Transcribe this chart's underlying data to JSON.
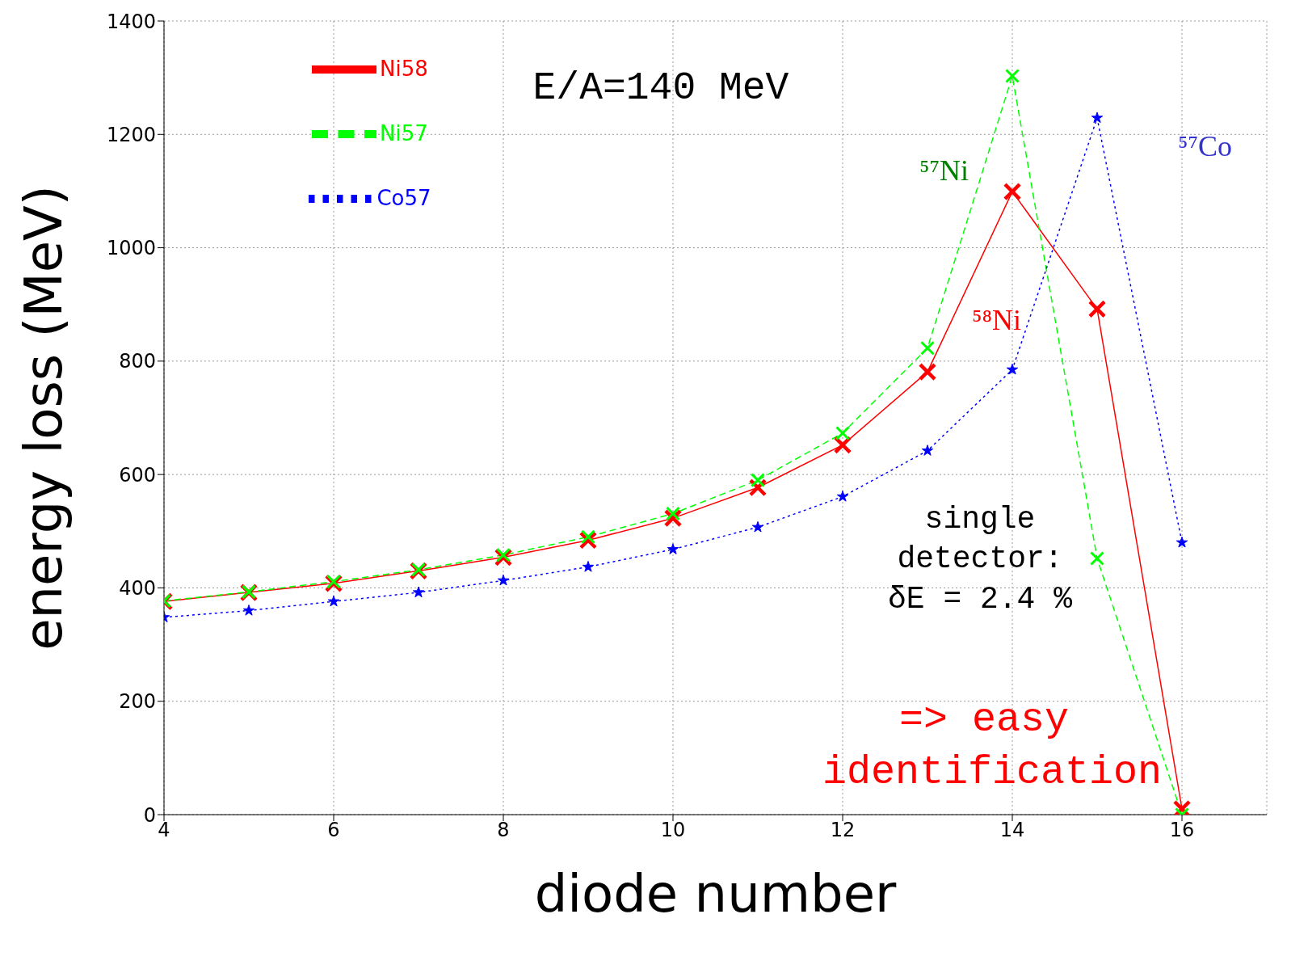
{
  "chart_data": {
    "type": "line",
    "xlabel": "diode number",
    "ylabel": "energy loss (MeV)",
    "x": [
      4,
      5,
      6,
      7,
      8,
      9,
      10,
      11,
      12,
      13,
      14,
      15,
      16
    ],
    "series": [
      {
        "name": "Ni58",
        "color": "#ff0000",
        "line_style": "solid",
        "marker": "cross",
        "values": [
          376,
          392,
          408,
          430,
          454,
          484,
          523,
          577,
          652,
          781,
          1099,
          892,
          10
        ]
      },
      {
        "name": "Ni57",
        "color": "#00ff00",
        "line_style": "dashed",
        "marker": "cross",
        "values": [
          377,
          393,
          411,
          432,
          458,
          490,
          531,
          590,
          673,
          823,
          1303,
          452,
          0
        ]
      },
      {
        "name": "Co57",
        "color": "#0000ff",
        "line_style": "dotted",
        "marker": "star",
        "values": [
          348,
          360,
          376,
          392,
          413,
          437,
          468,
          507,
          561,
          642,
          785,
          1229,
          480
        ]
      }
    ],
    "xlim": [
      4,
      17
    ],
    "xticks": [
      4,
      6,
      8,
      10,
      12,
      14,
      16
    ],
    "ylim": [
      0,
      1400
    ],
    "yticks": [
      0,
      200,
      400,
      600,
      800,
      1000,
      1200,
      1400
    ],
    "grid": true,
    "legend": "top left",
    "annotations": [
      "E/A=140 MeV",
      "⁵⁷Ni",
      "⁵⁸Ni",
      "⁵⁷Co",
      "single detector: δE = 2.4 %",
      "=> easy identification"
    ]
  }
}
